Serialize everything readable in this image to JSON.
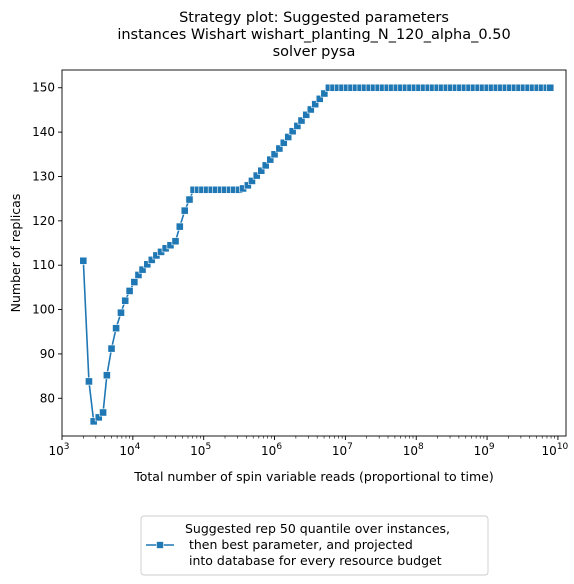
{
  "chart_data": {
    "type": "line",
    "title_lines": [
      "Strategy plot: Suggested parameters",
      "instances Wishart wishart_planting_N_120_alpha_0.50",
      "solver pysa"
    ],
    "xlabel": "Total number of spin variable reads (proportional to time)",
    "ylabel": "Number of replicas",
    "x_scale": "log",
    "xlim": [
      1000,
      13000000000
    ],
    "ylim": [
      71.5,
      154
    ],
    "x_ticks": [
      {
        "value": 1000,
        "base": "10",
        "exp": "3"
      },
      {
        "value": 10000,
        "base": "10",
        "exp": "4"
      },
      {
        "value": 100000,
        "base": "10",
        "exp": "5"
      },
      {
        "value": 1000000,
        "base": "10",
        "exp": "6"
      },
      {
        "value": 10000000,
        "base": "10",
        "exp": "7"
      },
      {
        "value": 100000000,
        "base": "10",
        "exp": "8"
      },
      {
        "value": 1000000000,
        "base": "10",
        "exp": "9"
      },
      {
        "value": 10000000000,
        "base": "10",
        "exp": "10"
      }
    ],
    "y_ticks": [
      "80",
      "90",
      "100",
      "110",
      "120",
      "130",
      "140",
      "150"
    ],
    "grid": false,
    "legend_position": "bottom-center, outside",
    "series": [
      {
        "name": "Suggested rep 50 quantile over instances,\n then best parameter, and projected\n into database for every resource budget",
        "marker": "square",
        "color": "#1f77b4",
        "points": [
          [
            2000,
            111
          ],
          [
            2400,
            83.8
          ],
          [
            2800,
            74.8
          ],
          [
            3300,
            75.7
          ],
          [
            3800,
            76.8
          ],
          [
            4300,
            85.2
          ],
          [
            5000,
            91.2
          ],
          [
            5800,
            95.8
          ],
          [
            6800,
            99.3
          ],
          [
            7800,
            102
          ],
          [
            9000,
            104.2
          ],
          [
            10500,
            106.2
          ],
          [
            12000,
            107.8
          ],
          [
            13700,
            109
          ],
          [
            16000,
            110.2
          ],
          [
            18500,
            111.2
          ],
          [
            21500,
            112.2
          ],
          [
            25000,
            113
          ],
          [
            29000,
            113.8
          ],
          [
            34000,
            114.5
          ],
          [
            40000,
            115.4
          ],
          [
            46000,
            118.7
          ],
          [
            54000,
            122.3
          ],
          [
            63000,
            124.8
          ],
          [
            72000,
            127
          ],
          [
            83000,
            127
          ],
          [
            96000,
            127
          ],
          [
            112000,
            127
          ],
          [
            130000,
            127
          ],
          [
            150000,
            127
          ],
          [
            175000,
            127
          ],
          [
            200000,
            127
          ],
          [
            235000,
            127
          ],
          [
            270000,
            127
          ],
          [
            315000,
            127
          ],
          [
            360000,
            127.3
          ],
          [
            420000,
            128
          ],
          [
            480000,
            129
          ],
          [
            560000,
            130.2
          ],
          [
            650000,
            131.3
          ],
          [
            750000,
            132.5
          ],
          [
            870000,
            133.8
          ],
          [
            1000000,
            135
          ],
          [
            1170000,
            136.3
          ],
          [
            1350000,
            137.6
          ],
          [
            1560000,
            138.9
          ],
          [
            1800000,
            140.2
          ],
          [
            2100000,
            141.4
          ],
          [
            2400000,
            142.6
          ],
          [
            2800000,
            143.9
          ],
          [
            3250000,
            145.1
          ],
          [
            3750000,
            146.3
          ],
          [
            4350000,
            147.5
          ],
          [
            5050000,
            148.7
          ],
          [
            5850000,
            150
          ],
          [
            6800000,
            150
          ],
          [
            7900000,
            150
          ],
          [
            9100000,
            150
          ],
          [
            10500000,
            150
          ],
          [
            12200000,
            150
          ],
          [
            14100000,
            150
          ],
          [
            16400000,
            150
          ],
          [
            19000000,
            150
          ],
          [
            22000000,
            150
          ],
          [
            25500000,
            150
          ],
          [
            29500000,
            150
          ],
          [
            34200000,
            150
          ],
          [
            39600000,
            150
          ],
          [
            45900000,
            150
          ],
          [
            53200000,
            150
          ],
          [
            61700000,
            150
          ],
          [
            71500000,
            150
          ],
          [
            82900000,
            150
          ],
          [
            96100000,
            150
          ],
          [
            111000000,
            150
          ],
          [
            129000000,
            150
          ],
          [
            150000000,
            150
          ],
          [
            173000000,
            150
          ],
          [
            201000000,
            150
          ],
          [
            233000000,
            150
          ],
          [
            270000000,
            150
          ],
          [
            313000000,
            150
          ],
          [
            363000000,
            150
          ],
          [
            420000000,
            150
          ],
          [
            487000000,
            150
          ],
          [
            565000000,
            150
          ],
          [
            655000000,
            150
          ],
          [
            759000000,
            150
          ],
          [
            880000000,
            150
          ],
          [
            1020000000,
            150
          ],
          [
            1180000000,
            150
          ],
          [
            1370000000,
            150
          ],
          [
            1590000000,
            150
          ],
          [
            1840000000,
            150
          ],
          [
            2130000000,
            150
          ],
          [
            2470000000,
            150
          ],
          [
            2870000000,
            150
          ],
          [
            3320000000,
            150
          ],
          [
            3850000000,
            150
          ],
          [
            4470000000,
            150
          ],
          [
            5180000000,
            150
          ],
          [
            6000000000,
            150
          ],
          [
            6960000000,
            150
          ],
          [
            7800000000,
            150
          ]
        ]
      }
    ]
  }
}
